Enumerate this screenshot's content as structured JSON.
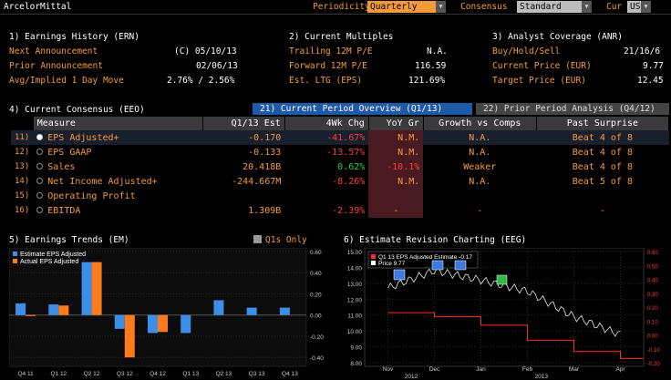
{
  "header": {
    "company": "ArcelorMittal",
    "periodicity_label": "Periodicity",
    "periodicity_value": "Quarterly",
    "consensus_label": "Consensus",
    "consensus_value": "Standard",
    "cur_label": "Cur",
    "cur_value": "USD"
  },
  "earnings_history": {
    "title": "1) Earnings History (ERN)",
    "rows": [
      {
        "label": "Next Announcement",
        "value": "(C)  05/10/13"
      },
      {
        "label": "Prior Announcement",
        "value": "02/06/13"
      },
      {
        "label": "Avg/Implied 1 Day Move",
        "value": "2.76% / 2.56%"
      }
    ]
  },
  "multiples": {
    "title": "2) Current Multiples",
    "rows": [
      {
        "label": "Trailing 12M P/E",
        "value": "N.A."
      },
      {
        "label": "Forward 12M P/E",
        "value": "116.59"
      },
      {
        "label": "Est. LTG (EPS)",
        "value": "121.69%"
      }
    ]
  },
  "analyst": {
    "title": "3) Analyst Coverage (ANR)",
    "rows": [
      {
        "label": "Buy/Hold/Sell",
        "value": "21/16/6"
      },
      {
        "label": "Current Price (EUR)",
        "value": "9.77"
      },
      {
        "label": "Target Price (EUR)",
        "value": "12.45"
      }
    ]
  },
  "consensus": {
    "title": "4) Current Consensus (EEO)",
    "tab1": "21) Current Period Overview (Q1/13)",
    "tab2": "22) Prior Period Analysis (Q4/12)",
    "columns": [
      "Measure",
      "Q1/13 Est",
      "4Wk Chg",
      "YoY Gr",
      "Growth vs Comps",
      "Past Surprise"
    ],
    "rows": [
      {
        "num": "11)",
        "measure": "EPS Adjusted+",
        "est": "-0.170",
        "chg": "-41.67%",
        "yoy": "N.M.",
        "comps": "N.A.",
        "surprise": "Beat 4 of 8"
      },
      {
        "num": "12)",
        "measure": "EPS GAAP",
        "est": "-0.133",
        "chg": "-13.57%",
        "yoy": "N.M.",
        "comps": "N.A.",
        "surprise": "Beat 4 of 8"
      },
      {
        "num": "13)",
        "measure": "Sales",
        "est": "20.418B",
        "chg": "0.62%",
        "yoy": "-10.1%",
        "comps": "Weaker",
        "surprise": "Beat 4 of 8"
      },
      {
        "num": "14)",
        "measure": "Net Income Adjusted+",
        "est": "-244.667M",
        "chg": "-8.26%",
        "yoy": "N.M.",
        "comps": "N.A.",
        "surprise": "Beat 5 of 8"
      },
      {
        "num": "15)",
        "measure": "Operating Profit",
        "est": "",
        "chg": "",
        "yoy": "",
        "comps": "",
        "surprise": ""
      },
      {
        "num": "16)",
        "measure": "EBITDA",
        "est": "1.309B",
        "chg": "-2.39%",
        "yoy": "-",
        "comps": "-",
        "surprise": "-"
      }
    ]
  },
  "trends": {
    "title": "5) Earnings Trends (EM)",
    "q1s": "Q1s Only",
    "legend": [
      "Estimate EPS Adjusted",
      "Actual EPS Adjusted"
    ],
    "yticks": [
      "0.60",
      "0.40",
      "0.20",
      "0.00",
      "-0.20",
      "-0.40"
    ],
    "xticks": [
      "Q4 11",
      "Q1 12",
      "Q2 12",
      "Q3 12",
      "Q4 12",
      "Q1 13",
      "Q2 13",
      "Q3 13",
      "Q4 13"
    ]
  },
  "revision": {
    "title": "6) Estimate Revision Charting (EEG)",
    "legend": [
      "Q1 13 EPS Adjusted Estimate  -0.17",
      "Price  9.77"
    ],
    "lyticks": [
      "15.00",
      "14.00",
      "13.00",
      "12.00",
      "11.00",
      "10.00",
      "9.00",
      "8.00"
    ],
    "ryticks": [
      "0.60",
      "0.50",
      "0.40",
      "0.30",
      "0.20",
      "0.10",
      "0.00",
      "-0.10",
      "-0.20"
    ],
    "xticks": [
      "Nov",
      "Dec",
      "Jan",
      "Feb",
      "Mar",
      "Apr"
    ],
    "years": [
      "2012",
      "2013"
    ]
  },
  "chart_data": [
    {
      "type": "bar",
      "categories": [
        "Q4 11",
        "Q1 12",
        "Q2 12",
        "Q3 12",
        "Q4 12",
        "Q1 13",
        "Q2 13",
        "Q3 13",
        "Q4 13"
      ],
      "series": [
        {
          "name": "Estimate EPS Adjusted",
          "values": [
            0.11,
            0.1,
            0.5,
            -0.13,
            -0.17,
            -0.17,
            0.14,
            0.07,
            0.07
          ]
        },
        {
          "name": "Actual EPS Adjusted",
          "values": [
            -0.01,
            0.09,
            0.5,
            -0.4,
            -0.16,
            null,
            null,
            null,
            null
          ]
        }
      ],
      "ylim": [
        -0.45,
        0.6
      ]
    },
    {
      "type": "line",
      "x": [
        "Nov",
        "Dec",
        "Jan",
        "Feb",
        "Mar",
        "Apr"
      ],
      "series": [
        {
          "name": "Price",
          "values": [
            12.7,
            13.8,
            13.2,
            12.5,
            10.9,
            9.77
          ]
        },
        {
          "name": "Q1 13 EPS Adjusted Estimate",
          "values": [
            0.16,
            0.13,
            0.07,
            -0.04,
            -0.12,
            -0.17
          ]
        }
      ]
    }
  ]
}
